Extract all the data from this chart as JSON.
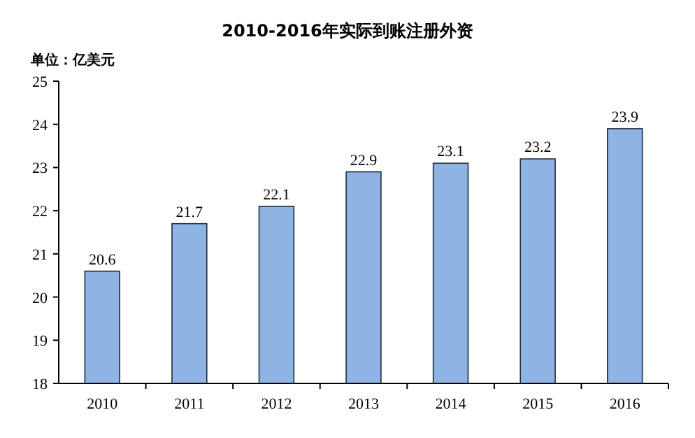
{
  "chart_data": {
    "type": "bar",
    "title": "2010-2016年实际到账注册外资",
    "ylabel": "单位：亿美元",
    "categories": [
      "2010",
      "2011",
      "2012",
      "2013",
      "2014",
      "2015",
      "2016"
    ],
    "values": [
      20.6,
      21.7,
      22.1,
      22.9,
      23.1,
      23.2,
      23.9
    ],
    "color": "#8db4e2",
    "ylim": [
      18,
      25
    ],
    "yticks": [
      18,
      19,
      20,
      21,
      22,
      23,
      24,
      25
    ],
    "data_labels": true,
    "grid": false
  }
}
